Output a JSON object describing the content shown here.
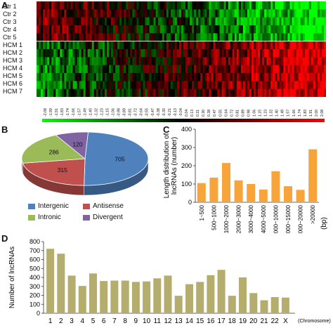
{
  "panels": {
    "a": "A",
    "b": "B",
    "c": "C",
    "d": "D"
  },
  "heatmap": {
    "rows": [
      "Ctr 1",
      "Ctr 2",
      "Ctr 3",
      "Ctr 4",
      "Ctr 5",
      "HCM 1",
      "HCM 2",
      "HCM 3",
      "HCM 4",
      "HCM 5",
      "HCM 6",
      "HCM 7"
    ],
    "colorbar_ticks": [
      "-2.08",
      "-1.99",
      "-1.91",
      "-1.83",
      "-1.74",
      "-1.66",
      "-1.57",
      "-1.49",
      "-1.40",
      "-1.32",
      "-1.23",
      "-1.15",
      "-1.06",
      "-0.98",
      "-0.89",
      "-0.81",
      "-0.72",
      "-0.64",
      "-0.55",
      "-0.47",
      "-0.38",
      "-0.30",
      "-0.21",
      "-0.13",
      "-0.04",
      "0.04",
      "0.13",
      "0.21",
      "0.30",
      "0.38",
      "0.47",
      "0.55",
      "0.64",
      "0.72",
      "0.81",
      "0.89",
      "0.98",
      "1.06",
      "1.15",
      "1.23",
      "1.32",
      "1.40",
      "1.49",
      "1.57",
      "1.66",
      "1.74",
      "1.83",
      "1.91",
      "2.00",
      "2.08"
    ],
    "colors": {
      "low": "#00ff00",
      "mid": "#000000",
      "high": "#ff0000"
    }
  },
  "chart_data": [
    {
      "type": "pie",
      "labels": [
        "Intergenic",
        "Antisense",
        "Intronic",
        "Divergent"
      ],
      "values": [
        705,
        315,
        286,
        120
      ],
      "colors": [
        "#4f81bd",
        "#c0504d",
        "#9bbb59",
        "#8064a2"
      ],
      "legend_position": "bottom"
    },
    {
      "type": "bar",
      "categories": [
        "1~500",
        "500~1000",
        "1000~2000",
        "2000~3000",
        "3000~4000",
        "4000~5000",
        "5000~10000",
        "10000~15000",
        "15000~20000",
        ">20000"
      ],
      "values": [
        105,
        135,
        215,
        120,
        100,
        70,
        170,
        88,
        68,
        290
      ],
      "ylabel": "Length distribution of lncRNAs (number)",
      "xunit": "(bp)",
      "ylim": [
        0,
        400
      ],
      "yticks": [
        0,
        100,
        200,
        300,
        400
      ],
      "color": "#f7a43a"
    },
    {
      "type": "bar",
      "categories": [
        "1",
        "2",
        "3",
        "4",
        "5",
        "6",
        "7",
        "8",
        "9",
        "10",
        "11",
        "12",
        "13",
        "14",
        "15",
        "16",
        "17",
        "18",
        "19",
        "20",
        "21",
        "22",
        "X"
      ],
      "values": [
        720,
        665,
        420,
        305,
        445,
        360,
        365,
        365,
        350,
        355,
        390,
        420,
        195,
        325,
        350,
        425,
        485,
        195,
        400,
        225,
        145,
        180,
        175
      ],
      "ylabel": "Number of lncRNAs",
      "xunit": "(Chromosome)",
      "ylim": [
        0,
        800
      ],
      "yticks": [
        0,
        100,
        200,
        300,
        400,
        500,
        600,
        700,
        800
      ],
      "color": "#b5ad6e"
    }
  ]
}
